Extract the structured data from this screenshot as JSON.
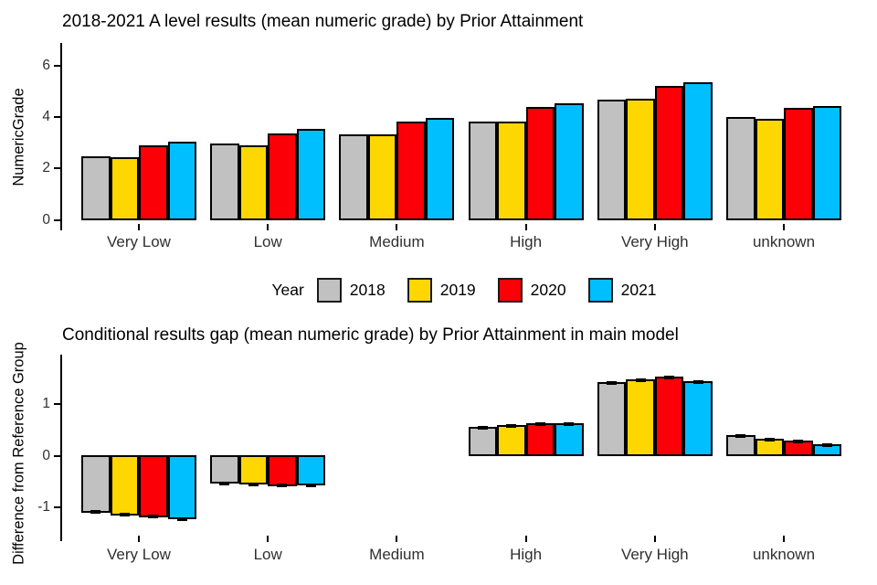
{
  "page": {
    "background": "#ffffff"
  },
  "legend": {
    "title": "Year",
    "entries": [
      {
        "label": "2018",
        "color": "#C1C1C1"
      },
      {
        "label": "2019",
        "color": "#FFD700"
      },
      {
        "label": "2020",
        "color": "#FB0007"
      },
      {
        "label": "2021",
        "color": "#00BFFF"
      }
    ]
  },
  "chart_data": [
    {
      "type": "bar",
      "title": "2018-2021 A level results (mean numeric grade) by Prior Attainment",
      "xlabel": "",
      "ylabel": "NumericGrade",
      "categories": [
        "Very Low",
        "Low",
        "Medium",
        "High",
        "Very High",
        "unknown"
      ],
      "series": [
        {
          "name": "2018",
          "color": "#C1C1C1",
          "values": [
            2.45,
            2.92,
            3.3,
            3.8,
            4.63,
            3.95
          ]
        },
        {
          "name": "2019",
          "color": "#FFD700",
          "values": [
            2.4,
            2.85,
            3.27,
            3.78,
            4.66,
            3.9
          ]
        },
        {
          "name": "2020",
          "color": "#FB0007",
          "values": [
            2.85,
            3.32,
            3.77,
            4.35,
            5.18,
            4.33
          ]
        },
        {
          "name": "2021",
          "color": "#00BFFF",
          "values": [
            3.0,
            3.5,
            3.92,
            4.5,
            5.3,
            4.38
          ]
        }
      ],
      "yticks": [
        0,
        2,
        4,
        6
      ],
      "ylim": [
        0,
        6.8
      ],
      "grid": false,
      "legend_position": "bottom",
      "error_bars": false
    },
    {
      "type": "bar",
      "title": "Conditional results gap (mean numeric grade) by Prior Attainment in main model",
      "xlabel": "",
      "ylabel": "Difference from Reference Group",
      "categories": [
        "Very Low",
        "Low",
        "Medium",
        "High",
        "Very High",
        "unknown"
      ],
      "reference_category": "Medium",
      "series": [
        {
          "name": "2018",
          "color": "#C1C1C1",
          "values": [
            -1.1,
            -0.54,
            0,
            0.55,
            1.42,
            0.38
          ]
        },
        {
          "name": "2019",
          "color": "#FFD700",
          "values": [
            -1.15,
            -0.56,
            0,
            0.57,
            1.46,
            0.31
          ]
        },
        {
          "name": "2020",
          "color": "#FB0007",
          "values": [
            -1.19,
            -0.58,
            0,
            0.62,
            1.52,
            0.27
          ]
        },
        {
          "name": "2021",
          "color": "#00BFFF",
          "values": [
            -1.23,
            -0.57,
            0,
            0.61,
            1.43,
            0.2
          ]
        }
      ],
      "yticks": [
        -1,
        0,
        1
      ],
      "ylim": [
        -1.45,
        1.75
      ],
      "grid": false,
      "legend_position": "none",
      "error_bars": true
    }
  ]
}
